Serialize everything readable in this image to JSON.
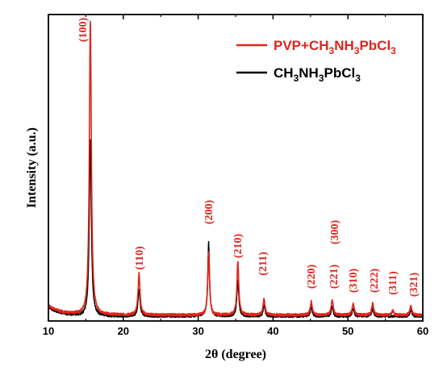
{
  "chart_data": {
    "type": "line",
    "xlabel": "2θ (degree)",
    "ylabel": "Intensity (a.u.)",
    "xlim": [
      10,
      60
    ],
    "x_ticks": [
      "10",
      "20",
      "30",
      "40",
      "50",
      "60"
    ],
    "y_ticks_labeled": false,
    "grid": false,
    "legend_position": "top-right",
    "colors": {
      "red": "#e0241b",
      "black": "#000000"
    },
    "series": [
      {
        "name": "PVP+CH3NH3PbCl3",
        "label_parts": [
          "PVP+CH",
          "3",
          "NH",
          "3",
          "PbCl",
          "3"
        ],
        "color": "#e0241b",
        "baseline": 2.0,
        "peaks": [
          {
            "x": 15.6,
            "height": 100,
            "width": 0.16
          },
          {
            "x": 22.1,
            "height": 14,
            "width": 0.16
          },
          {
            "x": 31.4,
            "height": 21,
            "width": 0.14
          },
          {
            "x": 35.3,
            "height": 18,
            "width": 0.15
          },
          {
            "x": 38.8,
            "height": 5.5,
            "width": 0.15
          },
          {
            "x": 45.1,
            "height": 4.5,
            "width": 0.15
          },
          {
            "x": 47.9,
            "height": 5,
            "width": 0.15
          },
          {
            "x": 50.7,
            "height": 4,
            "width": 0.15
          },
          {
            "x": 53.3,
            "height": 4,
            "width": 0.15
          },
          {
            "x": 56.0,
            "height": 1.5,
            "width": 0.15
          },
          {
            "x": 58.4,
            "height": 3,
            "width": 0.15
          }
        ]
      },
      {
        "name": "CH3NH3PbCl3",
        "label_parts": [
          "CH",
          "3",
          "NH",
          "3",
          "PbCl",
          "3"
        ],
        "color": "#000000",
        "baseline": 1.6,
        "peaks": [
          {
            "x": 15.6,
            "height": 60,
            "width": 0.16
          },
          {
            "x": 22.1,
            "height": 9,
            "width": 0.16
          },
          {
            "x": 31.4,
            "height": 25,
            "width": 0.14
          },
          {
            "x": 35.3,
            "height": 12,
            "width": 0.15
          },
          {
            "x": 38.8,
            "height": 3.5,
            "width": 0.15
          },
          {
            "x": 45.1,
            "height": 3,
            "width": 0.15
          },
          {
            "x": 47.9,
            "height": 3,
            "width": 0.15
          },
          {
            "x": 50.7,
            "height": 2.5,
            "width": 0.15
          },
          {
            "x": 53.3,
            "height": 2.5,
            "width": 0.15
          },
          {
            "x": 58.4,
            "height": 2,
            "width": 0.15
          }
        ]
      }
    ],
    "annotations": [
      {
        "text": "(100)",
        "x": 15.6
      },
      {
        "text": "(110)",
        "x": 22.1
      },
      {
        "text": "(200)",
        "x": 31.4
      },
      {
        "text": "(210)",
        "x": 35.3
      },
      {
        "text": "(211)",
        "x": 38.8
      },
      {
        "text": "(220)",
        "x": 45.1
      },
      {
        "text": "(221)",
        "x": 47.9
      },
      {
        "text": "(300)",
        "x": 47.9
      },
      {
        "text": "(310)",
        "x": 50.7
      },
      {
        "text": "(222)",
        "x": 53.3
      },
      {
        "text": "(311)",
        "x": 56.0
      },
      {
        "text": "(321)",
        "x": 58.4
      }
    ]
  }
}
